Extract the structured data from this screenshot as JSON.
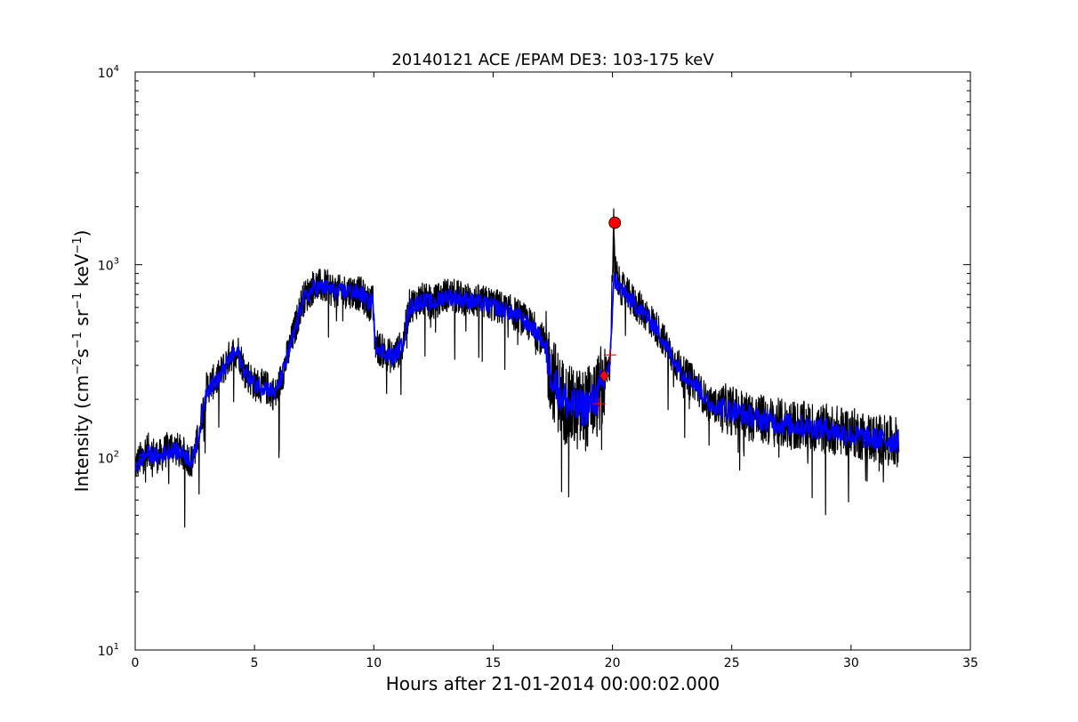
{
  "chart_data": {
    "type": "line",
    "title": "20140121 ACE /EPAM DE3: 103-175 keV",
    "xlabel": "Hours after 21-01-2014 00:00:02.000",
    "ylabel_parts": [
      "Intensity (cm",
      "−2",
      "s",
      "−1",
      " sr",
      "−1",
      " keV",
      "−1",
      ")"
    ],
    "xlim": [
      0,
      35
    ],
    "ylim": [
      10,
      10000
    ],
    "yscale": "log",
    "x_ticks": [
      "0",
      "5",
      "10",
      "15",
      "20",
      "25",
      "30",
      "35"
    ],
    "y_ticks": [
      {
        "base": "10",
        "exp": "1"
      },
      {
        "base": "10",
        "exp": "2"
      },
      {
        "base": "10",
        "exp": "3"
      },
      {
        "base": "10",
        "exp": "4"
      }
    ],
    "grid": false,
    "series": [
      {
        "color": "#000000",
        "style": "raw",
        "x": [
          0,
          0.5,
          1,
          1.5,
          2,
          2.4,
          2.6,
          3,
          3.5,
          4,
          4.3,
          4.6,
          5,
          5.5,
          5.9,
          6.2,
          6.6,
          7,
          7.5,
          8,
          8.5,
          9,
          9.5,
          9.8,
          9.95,
          10.05,
          10.3,
          10.8,
          11.2,
          11.5,
          12,
          12.5,
          13,
          14,
          15,
          16,
          16.7,
          17.1,
          17.4,
          17.8,
          18.2,
          18.8,
          19.3,
          19.6,
          19.75,
          19.9,
          20.05,
          20.1,
          20.3,
          20.6,
          21,
          21.5,
          22,
          22.5,
          23,
          23.5,
          24,
          25,
          26,
          27,
          28,
          29,
          30,
          31,
          32
        ],
        "y": [
          90,
          110,
          100,
          115,
          105,
          95,
          120,
          230,
          260,
          340,
          360,
          280,
          240,
          230,
          210,
          280,
          420,
          650,
          780,
          770,
          720,
          730,
          700,
          620,
          680,
          390,
          360,
          330,
          380,
          610,
          660,
          630,
          700,
          660,
          620,
          550,
          470,
          400,
          280,
          210,
          180,
          175,
          200,
          240,
          280,
          300,
          1650,
          950,
          780,
          700,
          620,
          540,
          440,
          330,
          270,
          240,
          190,
          175,
          160,
          150,
          145,
          140,
          135,
          125,
          120
        ]
      },
      {
        "color": "#0000ff",
        "style": "smoothed",
        "x": [
          0,
          0.5,
          1,
          1.5,
          2,
          2.4,
          2.6,
          3,
          3.5,
          4,
          4.3,
          4.6,
          5,
          5.5,
          5.9,
          6.2,
          6.6,
          7,
          7.5,
          8,
          8.5,
          9,
          9.5,
          9.8,
          9.95,
          10.05,
          10.3,
          10.8,
          11.2,
          11.5,
          12,
          12.5,
          13,
          14,
          15,
          16,
          16.7,
          17.1,
          17.4,
          17.8,
          18.2,
          18.8,
          19.3,
          19.6,
          19.75,
          19.9,
          20.05,
          20.3,
          20.6,
          21,
          21.5,
          22,
          22.5,
          23,
          23.5,
          24,
          25,
          26,
          27,
          28,
          29,
          30,
          31,
          32
        ],
        "y": [
          90,
          105,
          100,
          110,
          105,
          95,
          120,
          225,
          255,
          330,
          350,
          275,
          240,
          230,
          215,
          280,
          410,
          640,
          760,
          760,
          720,
          730,
          700,
          630,
          670,
          390,
          360,
          330,
          380,
          600,
          650,
          630,
          690,
          650,
          610,
          545,
          465,
          395,
          280,
          215,
          185,
          180,
          200,
          240,
          275,
          295,
          850,
          760,
          690,
          610,
          530,
          435,
          330,
          270,
          240,
          190,
          175,
          160,
          150,
          145,
          140,
          130,
          125,
          120
        ]
      }
    ],
    "markers": [
      {
        "shape": "circle",
        "x": 20.1,
        "y": 1650,
        "color": "#ff0000"
      },
      {
        "shape": "diamond",
        "x": 19.65,
        "y": 265,
        "color": "#ff0000"
      },
      {
        "shape": "plus",
        "x": 19.9,
        "y": 340,
        "color": "#ff0000"
      },
      {
        "shape": "plus",
        "x": 19.45,
        "y": 190,
        "color": "#ff0000"
      }
    ]
  }
}
